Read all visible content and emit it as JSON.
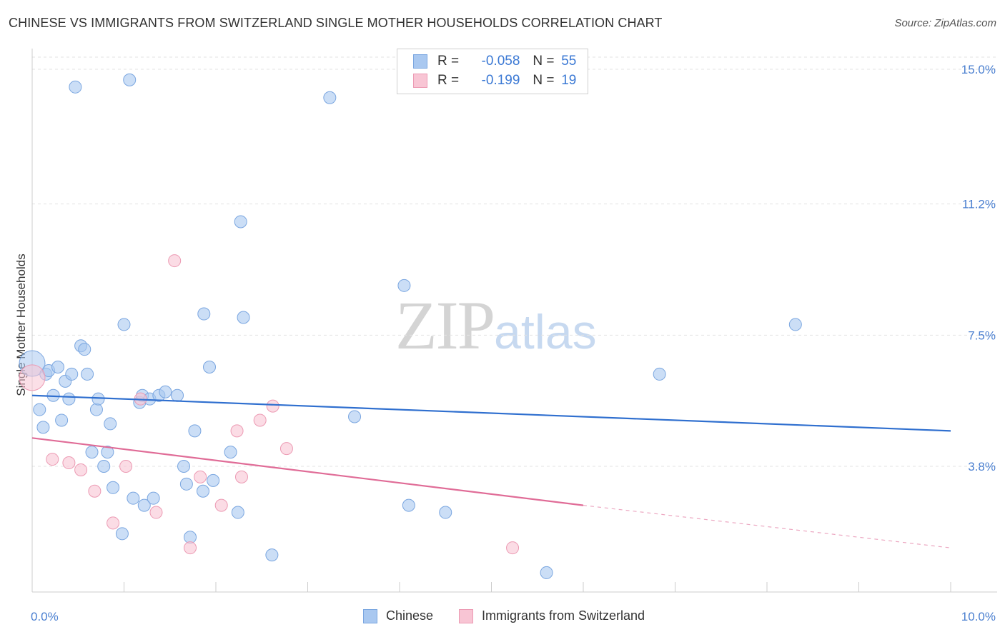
{
  "title": "CHINESE VS IMMIGRANTS FROM SWITZERLAND SINGLE MOTHER HOUSEHOLDS CORRELATION CHART",
  "source": "Source: ZipAtlas.com",
  "watermark": {
    "zip": "ZIP",
    "atlas": "atlas"
  },
  "legend_stats": [
    {
      "r_label": "R =",
      "r_value": "-0.058",
      "n_label": "N =",
      "n_value": "55",
      "color": "#a9c8f0",
      "border": "#7aa6e0"
    },
    {
      "r_label": "R =",
      "r_value": "-0.199",
      "n_label": "N =",
      "n_value": "19",
      "color": "#f8c5d4",
      "border": "#ec9ab3"
    }
  ],
  "chart_data": {
    "type": "scatter",
    "title": "CHINESE VS IMMIGRANTS FROM SWITZERLAND SINGLE MOTHER HOUSEHOLDS CORRELATION CHART",
    "xlabel": "",
    "ylabel": "Single Mother Households",
    "xlim": [
      0,
      10
    ],
    "ylim": [
      0,
      15.5
    ],
    "x_tick_labels": [
      "0.0%",
      "10.0%"
    ],
    "y_ticks": [
      3.8,
      7.5,
      11.2,
      15.0
    ],
    "y_tick_labels": [
      "3.8%",
      "7.5%",
      "11.2%",
      "15.0%"
    ],
    "grid": true,
    "legend_position": "bottom",
    "series": [
      {
        "name": "Chinese",
        "color": "#a9c8f0",
        "stroke": "#7aa6e0",
        "line_color": "#2f6fcf",
        "trend": {
          "x": [
            0.0,
            10.0
          ],
          "y": [
            5.8,
            4.8
          ]
        },
        "points": [
          [
            0.0,
            6.7
          ],
          [
            0.08,
            5.4
          ],
          [
            0.12,
            4.9
          ],
          [
            0.15,
            6.4
          ],
          [
            0.18,
            6.5
          ],
          [
            0.23,
            5.8
          ],
          [
            0.28,
            6.6
          ],
          [
            0.32,
            5.1
          ],
          [
            0.36,
            6.2
          ],
          [
            0.4,
            5.7
          ],
          [
            0.43,
            6.4
          ],
          [
            0.47,
            14.5
          ],
          [
            0.53,
            7.2
          ],
          [
            0.57,
            7.1
          ],
          [
            0.6,
            6.4
          ],
          [
            0.65,
            4.2
          ],
          [
            0.7,
            5.4
          ],
          [
            0.72,
            5.7
          ],
          [
            0.78,
            3.8
          ],
          [
            0.82,
            4.2
          ],
          [
            0.85,
            5.0
          ],
          [
            0.88,
            3.2
          ],
          [
            0.98,
            1.9
          ],
          [
            1.0,
            7.8
          ],
          [
            1.06,
            14.7
          ],
          [
            1.1,
            2.9
          ],
          [
            1.17,
            5.6
          ],
          [
            1.2,
            5.8
          ],
          [
            1.22,
            2.7
          ],
          [
            1.28,
            5.7
          ],
          [
            1.32,
            2.9
          ],
          [
            1.38,
            5.8
          ],
          [
            1.45,
            5.9
          ],
          [
            1.58,
            5.8
          ],
          [
            1.65,
            3.8
          ],
          [
            1.68,
            3.3
          ],
          [
            1.72,
            1.8
          ],
          [
            1.77,
            4.8
          ],
          [
            1.86,
            3.1
          ],
          [
            1.87,
            8.1
          ],
          [
            1.93,
            6.6
          ],
          [
            1.97,
            3.4
          ],
          [
            2.16,
            4.2
          ],
          [
            2.24,
            2.5
          ],
          [
            2.27,
            10.7
          ],
          [
            2.3,
            8.0
          ],
          [
            2.61,
            1.3
          ],
          [
            3.24,
            14.2
          ],
          [
            3.51,
            5.2
          ],
          [
            4.05,
            8.9
          ],
          [
            4.1,
            2.7
          ],
          [
            4.5,
            2.5
          ],
          [
            5.6,
            0.8
          ],
          [
            6.83,
            6.4
          ],
          [
            8.31,
            7.8
          ]
        ]
      },
      {
        "name": "Immigrants from Switzerland",
        "color": "#f8c5d4",
        "stroke": "#ec9ab3",
        "line_color": "#e06c97",
        "trend": {
          "x": [
            0.0,
            6.0
          ],
          "y": [
            4.6,
            2.7
          ]
        },
        "trend_dashed": {
          "x": [
            6.0,
            10.0
          ],
          "y": [
            2.7,
            1.5
          ]
        },
        "points": [
          [
            0.0,
            6.3
          ],
          [
            0.22,
            4.0
          ],
          [
            0.4,
            3.9
          ],
          [
            0.53,
            3.7
          ],
          [
            0.68,
            3.1
          ],
          [
            0.88,
            2.2
          ],
          [
            1.02,
            3.8
          ],
          [
            1.18,
            5.7
          ],
          [
            1.35,
            2.5
          ],
          [
            1.55,
            9.6
          ],
          [
            1.72,
            1.5
          ],
          [
            1.83,
            3.5
          ],
          [
            2.06,
            2.7
          ],
          [
            2.23,
            4.8
          ],
          [
            2.28,
            3.5
          ],
          [
            2.48,
            5.1
          ],
          [
            2.62,
            5.5
          ],
          [
            2.77,
            4.3
          ],
          [
            5.23,
            1.5
          ]
        ]
      }
    ]
  }
}
